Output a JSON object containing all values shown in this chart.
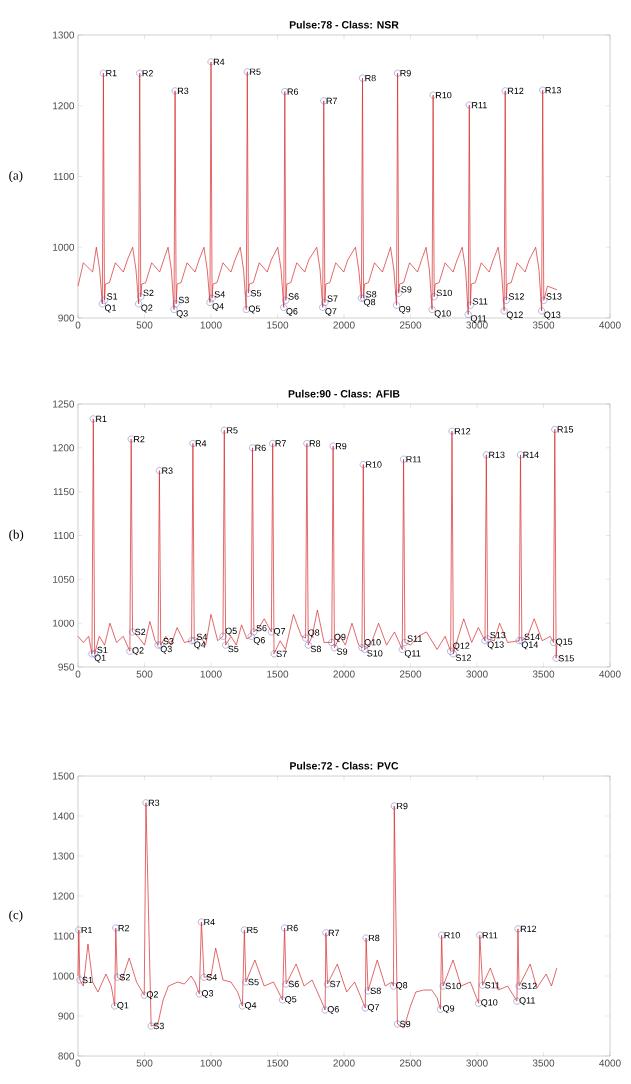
{
  "chart_data": [
    {
      "type": "line",
      "title": "Pulse:78 - Class: NSR",
      "color": "#d62728",
      "xlim": [
        0,
        4000
      ],
      "xticks": [
        0,
        500,
        1000,
        1500,
        2000,
        2500,
        3000,
        3500,
        4000
      ],
      "ylim": [
        900,
        1300
      ],
      "yticks": [
        900,
        1000,
        1100,
        1200,
        1300
      ],
      "x": [
        0,
        40,
        110,
        138,
        163,
        183,
        191,
        199,
        206,
        236,
        281,
        341,
        371,
        411,
        436,
        456,
        464,
        472,
        479,
        509,
        554,
        614,
        644,
        677,
        702,
        722,
        730,
        738,
        745,
        775,
        820,
        880,
        910,
        947,
        972,
        992,
        1000,
        1008,
        1015,
        1045,
        1090,
        1150,
        1180,
        1220,
        1245,
        1265,
        1273,
        1281,
        1288,
        1318,
        1363,
        1423,
        1453,
        1502,
        1527,
        1547,
        1555,
        1563,
        1570,
        1600,
        1645,
        1705,
        1735,
        1795,
        1820,
        1840,
        1848,
        1856,
        1863,
        1893,
        1938,
        1998,
        2028,
        2086,
        2111,
        2131,
        2139,
        2147,
        2154,
        2184,
        2229,
        2289,
        2319,
        2350,
        2375,
        2395,
        2403,
        2411,
        2418,
        2448,
        2493,
        2553,
        2583,
        2617,
        2642,
        2662,
        2670,
        2678,
        2685,
        2715,
        2760,
        2820,
        2850,
        2889,
        2914,
        2934,
        2942,
        2950,
        2957,
        2987,
        3032,
        3092,
        3122,
        3159,
        3184,
        3204,
        3212,
        3220,
        3227,
        3257,
        3302,
        3362,
        3392,
        3441,
        3466,
        3486,
        3494,
        3502,
        3530,
        3600
      ],
      "values": [
        945,
        978,
        965,
        1000,
        968,
        920,
        1246,
        925,
        948,
        950,
        978,
        965,
        982,
        1000,
        968,
        920,
        1246,
        930,
        948,
        950,
        978,
        965,
        982,
        1000,
        968,
        912,
        1221,
        920,
        948,
        950,
        978,
        965,
        982,
        1000,
        968,
        922,
        1262,
        928,
        948,
        950,
        978,
        965,
        982,
        1000,
        968,
        912,
        1248,
        935,
        948,
        950,
        978,
        965,
        982,
        1000,
        968,
        915,
        1220,
        925,
        948,
        950,
        978,
        965,
        982,
        1000,
        968,
        915,
        1207,
        922,
        948,
        950,
        978,
        965,
        982,
        1000,
        968,
        928,
        1239,
        928,
        948,
        950,
        978,
        965,
        982,
        1000,
        968,
        918,
        1246,
        935,
        948,
        950,
        978,
        965,
        982,
        1000,
        968,
        912,
        1215,
        930,
        948,
        950,
        978,
        965,
        982,
        1000,
        968,
        905,
        1201,
        918,
        948,
        950,
        978,
        965,
        982,
        1000,
        968,
        910,
        1221,
        925,
        948,
        950,
        978,
        965,
        982,
        1000,
        968,
        910,
        1222,
        925,
        945,
        940
      ],
      "annotations": [
        "(a)",
        {
          "text": "R1",
          "x": 191,
          "y": 1246
        },
        {
          "text": "R2",
          "x": 464,
          "y": 1246
        },
        {
          "text": "R3",
          "x": 730,
          "y": 1221
        },
        {
          "text": "R4",
          "x": 1000,
          "y": 1262
        },
        {
          "text": "R5",
          "x": 1273,
          "y": 1248
        },
        {
          "text": "R6",
          "x": 1555,
          "y": 1220
        },
        {
          "text": "R7",
          "x": 1848,
          "y": 1207
        },
        {
          "text": "R8",
          "x": 2139,
          "y": 1239
        },
        {
          "text": "R9",
          "x": 2403,
          "y": 1246
        },
        {
          "text": "R10",
          "x": 2670,
          "y": 1215
        },
        {
          "text": "R11",
          "x": 2942,
          "y": 1201
        },
        {
          "text": "R12",
          "x": 3212,
          "y": 1221
        },
        {
          "text": "R13",
          "x": 3494,
          "y": 1222
        },
        {
          "text": "Q1",
          "x": 183,
          "y": 920
        },
        {
          "text": "Q2",
          "x": 456,
          "y": 920
        },
        {
          "text": "Q3",
          "x": 722,
          "y": 912
        },
        {
          "text": "Q4",
          "x": 992,
          "y": 922
        },
        {
          "text": "Q5",
          "x": 1265,
          "y": 912
        },
        {
          "text": "Q6",
          "x": 1547,
          "y": 915
        },
        {
          "text": "Q7",
          "x": 1840,
          "y": 915
        },
        {
          "text": "Q8",
          "x": 2131,
          "y": 928
        },
        {
          "text": "Q9",
          "x": 2395,
          "y": 918
        },
        {
          "text": "Q10",
          "x": 2662,
          "y": 912
        },
        {
          "text": "Q11",
          "x": 2934,
          "y": 905
        },
        {
          "text": "Q12",
          "x": 3204,
          "y": 910
        },
        {
          "text": "Q13",
          "x": 3486,
          "y": 910
        },
        {
          "text": "S1",
          "x": 199,
          "y": 925
        },
        {
          "text": "S2",
          "x": 472,
          "y": 930
        },
        {
          "text": "S3",
          "x": 738,
          "y": 920
        },
        {
          "text": "S4",
          "x": 1008,
          "y": 928
        },
        {
          "text": "S5",
          "x": 1281,
          "y": 935
        },
        {
          "text": "S6",
          "x": 1563,
          "y": 925
        },
        {
          "text": "S7",
          "x": 1856,
          "y": 922
        },
        {
          "text": "S8",
          "x": 2147,
          "y": 928
        },
        {
          "text": "S9",
          "x": 2411,
          "y": 935
        },
        {
          "text": "S10",
          "x": 2678,
          "y": 930
        },
        {
          "text": "S11",
          "x": 2950,
          "y": 918
        },
        {
          "text": "S12",
          "x": 3220,
          "y": 925
        },
        {
          "text": "S13",
          "x": 3502,
          "y": 925
        }
      ]
    },
    {
      "type": "line",
      "title": "Pulse:90 - Class: AFIB",
      "color": "#d62728",
      "xlim": [
        0,
        4000
      ],
      "xticks": [
        0,
        500,
        1000,
        1500,
        2000,
        2500,
        3000,
        3500,
        4000
      ],
      "ylim": [
        950,
        1250
      ],
      "yticks": [
        950,
        1000,
        1050,
        1100,
        1150,
        1200,
        1250
      ],
      "x": [
        0,
        40,
        80,
        105,
        115,
        125,
        160,
        200,
        240,
        290,
        340,
        390,
        400,
        410,
        450,
        500,
        540,
        580,
        602,
        612,
        622,
        660,
        700,
        745,
        800,
        854,
        864,
        874,
        920,
        960,
        1000,
        1050,
        1090,
        1100,
        1110,
        1150,
        1190,
        1230,
        1270,
        1302,
        1312,
        1322,
        1360,
        1400,
        1454,
        1464,
        1474,
        1520,
        1560,
        1620,
        1680,
        1711,
        1721,
        1731,
        1760,
        1800,
        1850,
        1908,
        1918,
        1928,
        1970,
        2010,
        2060,
        2110,
        2135,
        2145,
        2155,
        2200,
        2260,
        2320,
        2380,
        2438,
        2448,
        2458,
        2500,
        2560,
        2620,
        2700,
        2760,
        2802,
        2812,
        2822,
        2860,
        2900,
        2960,
        3010,
        3060,
        3070,
        3080,
        3130,
        3170,
        3230,
        3317,
        3327,
        3337,
        3380,
        3430,
        3490,
        3550,
        3575,
        3585,
        3595,
        3600
      ],
      "values": [
        985,
        978,
        985,
        965,
        1233,
        965,
        985,
        975,
        1000,
        978,
        985,
        968,
        1210,
        990,
        985,
        975,
        1002,
        980,
        975,
        1174,
        975,
        985,
        975,
        995,
        978,
        980,
        1205,
        980,
        985,
        975,
        1010,
        980,
        985,
        1220,
        975,
        985,
        975,
        998,
        982,
        985,
        1200,
        990,
        995,
        1005,
        990,
        1205,
        965,
        980,
        970,
        1010,
        985,
        983,
        1205,
        975,
        985,
        1015,
        978,
        978,
        1202,
        972,
        985,
        975,
        1000,
        975,
        972,
        1181,
        970,
        975,
        1000,
        975,
        990,
        970,
        1187,
        978,
        975,
        985,
        990,
        970,
        985,
        968,
        1219,
        965,
        985,
        1005,
        978,
        995,
        980,
        1192,
        982,
        980,
        1000,
        978,
        980,
        1192,
        980,
        985,
        1005,
        980,
        985,
        978,
        1221,
        960,
        975
      ],
      "annotations": [
        "(b)",
        {
          "text": "R1",
          "x": 115,
          "y": 1233
        },
        {
          "text": "R2",
          "x": 400,
          "y": 1210
        },
        {
          "text": "R3",
          "x": 612,
          "y": 1174
        },
        {
          "text": "R4",
          "x": 864,
          "y": 1205
        },
        {
          "text": "R5",
          "x": 1100,
          "y": 1220
        },
        {
          "text": "R6",
          "x": 1312,
          "y": 1200
        },
        {
          "text": "R7",
          "x": 1464,
          "y": 1205
        },
        {
          "text": "R8",
          "x": 1721,
          "y": 1205
        },
        {
          "text": "R9",
          "x": 1918,
          "y": 1202
        },
        {
          "text": "R10",
          "x": 2145,
          "y": 1181
        },
        {
          "text": "R11",
          "x": 2448,
          "y": 1187
        },
        {
          "text": "R12",
          "x": 2812,
          "y": 1219
        },
        {
          "text": "R13",
          "x": 3070,
          "y": 1192
        },
        {
          "text": "R14",
          "x": 3327,
          "y": 1192
        },
        {
          "text": "R15",
          "x": 3585,
          "y": 1221
        },
        {
          "text": "Q1",
          "x": 105,
          "y": 965
        },
        {
          "text": "Q2",
          "x": 390,
          "y": 968
        },
        {
          "text": "Q3",
          "x": 602,
          "y": 975
        },
        {
          "text": "Q4",
          "x": 854,
          "y": 980
        },
        {
          "text": "Q5",
          "x": 1090,
          "y": 985
        },
        {
          "text": "Q6",
          "x": 1302,
          "y": 985
        },
        {
          "text": "Q7",
          "x": 1454,
          "y": 990
        },
        {
          "text": "Q8",
          "x": 1711,
          "y": 983
        },
        {
          "text": "Q9",
          "x": 1908,
          "y": 978
        },
        {
          "text": "Q10",
          "x": 2135,
          "y": 972
        },
        {
          "text": "Q11",
          "x": 2438,
          "y": 970
        },
        {
          "text": "Q12",
          "x": 2802,
          "y": 968
        },
        {
          "text": "Q13",
          "x": 3060,
          "y": 980
        },
        {
          "text": "Q14",
          "x": 3317,
          "y": 980
        },
        {
          "text": "Q15",
          "x": 3575,
          "y": 978
        },
        {
          "text": "S1",
          "x": 125,
          "y": 965
        },
        {
          "text": "S2",
          "x": 410,
          "y": 990
        },
        {
          "text": "S3",
          "x": 622,
          "y": 975
        },
        {
          "text": "S4",
          "x": 874,
          "y": 980
        },
        {
          "text": "S5",
          "x": 1110,
          "y": 975
        },
        {
          "text": "S6",
          "x": 1322,
          "y": 990
        },
        {
          "text": "S7",
          "x": 1474,
          "y": 965
        },
        {
          "text": "S8",
          "x": 1731,
          "y": 975
        },
        {
          "text": "S9",
          "x": 1928,
          "y": 972
        },
        {
          "text": "S10",
          "x": 2155,
          "y": 970
        },
        {
          "text": "S11",
          "x": 2458,
          "y": 978
        },
        {
          "text": "S12",
          "x": 2822,
          "y": 965
        },
        {
          "text": "S13",
          "x": 3080,
          "y": 982
        },
        {
          "text": "S14",
          "x": 3337,
          "y": 980
        },
        {
          "text": "S15",
          "x": 3595,
          "y": 960
        }
      ]
    },
    {
      "type": "line",
      "title": "Pulse:72 - Class: PVC",
      "color": "#d62728",
      "xlim": [
        0,
        4000
      ],
      "xticks": [
        0,
        500,
        1000,
        1500,
        2000,
        2500,
        3000,
        3500,
        4000
      ],
      "ylim": [
        800,
        1500
      ],
      "yticks": [
        800,
        900,
        1000,
        1100,
        1200,
        1300,
        1400,
        1500
      ],
      "x": [
        0,
        6,
        14,
        40,
        75,
        110,
        150,
        210,
        250,
        276,
        284,
        295,
        330,
        385,
        440,
        498,
        511,
        550,
        600,
        640,
        680,
        750,
        800,
        850,
        880,
        912,
        928,
        948,
        1000,
        1035,
        1090,
        1150,
        1200,
        1236,
        1251,
        1262,
        1330,
        1400,
        1470,
        1538,
        1553,
        1565,
        1640,
        1700,
        1760,
        1840,
        1858,
        1864,
        1876,
        1950,
        2020,
        2080,
        2160,
        2166,
        2181,
        2250,
        2310,
        2360,
        2372,
        2378,
        2402,
        2450,
        2500,
        2540,
        2600,
        2660,
        2700,
        2725,
        2734,
        2745,
        2820,
        2880,
        2950,
        3012,
        3021,
        3042,
        3100,
        3160,
        3230,
        3300,
        3308,
        3316,
        3400,
        3450,
        3520,
        3560,
        3600
      ],
      "values": [
        1000,
        1115,
        990,
        975,
        1080,
        985,
        960,
        1005,
        975,
        925,
        1120,
        997,
        990,
        1045,
        985,
        952,
        1433,
        875,
        880,
        940,
        975,
        985,
        980,
        1000,
        985,
        955,
        1135,
        997,
        1000,
        1070,
        990,
        985,
        960,
        925,
        1115,
        985,
        1040,
        975,
        985,
        940,
        1120,
        980,
        1030,
        975,
        990,
        930,
        915,
        1108,
        980,
        1030,
        960,
        985,
        920,
        1095,
        963,
        1040,
        975,
        985,
        975,
        1425,
        880,
        870,
        925,
        960,
        965,
        965,
        945,
        917,
        1102,
        975,
        1040,
        975,
        985,
        932,
        1102,
        977,
        1020,
        965,
        975,
        937,
        1118,
        975,
        1030,
        970,
        1005,
        975,
        1020
      ],
      "annotations": [
        "(c)",
        {
          "text": "R1",
          "x": 6,
          "y": 1115
        },
        {
          "text": "R2",
          "x": 284,
          "y": 1120
        },
        {
          "text": "R3",
          "x": 511,
          "y": 1433
        },
        {
          "text": "R4",
          "x": 928,
          "y": 1135
        },
        {
          "text": "R5",
          "x": 1251,
          "y": 1115
        },
        {
          "text": "R6",
          "x": 1553,
          "y": 1120
        },
        {
          "text": "R7",
          "x": 1864,
          "y": 1108
        },
        {
          "text": "R8",
          "x": 2166,
          "y": 1095
        },
        {
          "text": "R9",
          "x": 2378,
          "y": 1425
        },
        {
          "text": "R10",
          "x": 2734,
          "y": 1102
        },
        {
          "text": "R11",
          "x": 3021,
          "y": 1102
        },
        {
          "text": "R12",
          "x": 3308,
          "y": 1118
        },
        {
          "text": "Q1",
          "x": 276,
          "y": 925
        },
        {
          "text": "Q2",
          "x": 498,
          "y": 952
        },
        {
          "text": "Q3",
          "x": 912,
          "y": 955
        },
        {
          "text": "Q4",
          "x": 1236,
          "y": 925
        },
        {
          "text": "Q5",
          "x": 1538,
          "y": 940
        },
        {
          "text": "Q6",
          "x": 1858,
          "y": 915
        },
        {
          "text": "Q7",
          "x": 2160,
          "y": 920
        },
        {
          "text": "Q8",
          "x": 2372,
          "y": 975
        },
        {
          "text": "Q9",
          "x": 2725,
          "y": 917
        },
        {
          "text": "Q10",
          "x": 3012,
          "y": 932
        },
        {
          "text": "Q11",
          "x": 3300,
          "y": 937
        },
        {
          "text": "S1",
          "x": 14,
          "y": 990
        },
        {
          "text": "S2",
          "x": 295,
          "y": 997
        },
        {
          "text": "S3",
          "x": 550,
          "y": 875
        },
        {
          "text": "S4",
          "x": 948,
          "y": 997
        },
        {
          "text": "S5",
          "x": 1262,
          "y": 985
        },
        {
          "text": "S6",
          "x": 1565,
          "y": 980
        },
        {
          "text": "S7",
          "x": 1876,
          "y": 980
        },
        {
          "text": "S8",
          "x": 2181,
          "y": 963
        },
        {
          "text": "S9",
          "x": 2402,
          "y": 880
        },
        {
          "text": "S10",
          "x": 2745,
          "y": 975
        },
        {
          "text": "S11",
          "x": 3042,
          "y": 977
        },
        {
          "text": "S12",
          "x": 3316,
          "y": 975
        }
      ]
    }
  ]
}
